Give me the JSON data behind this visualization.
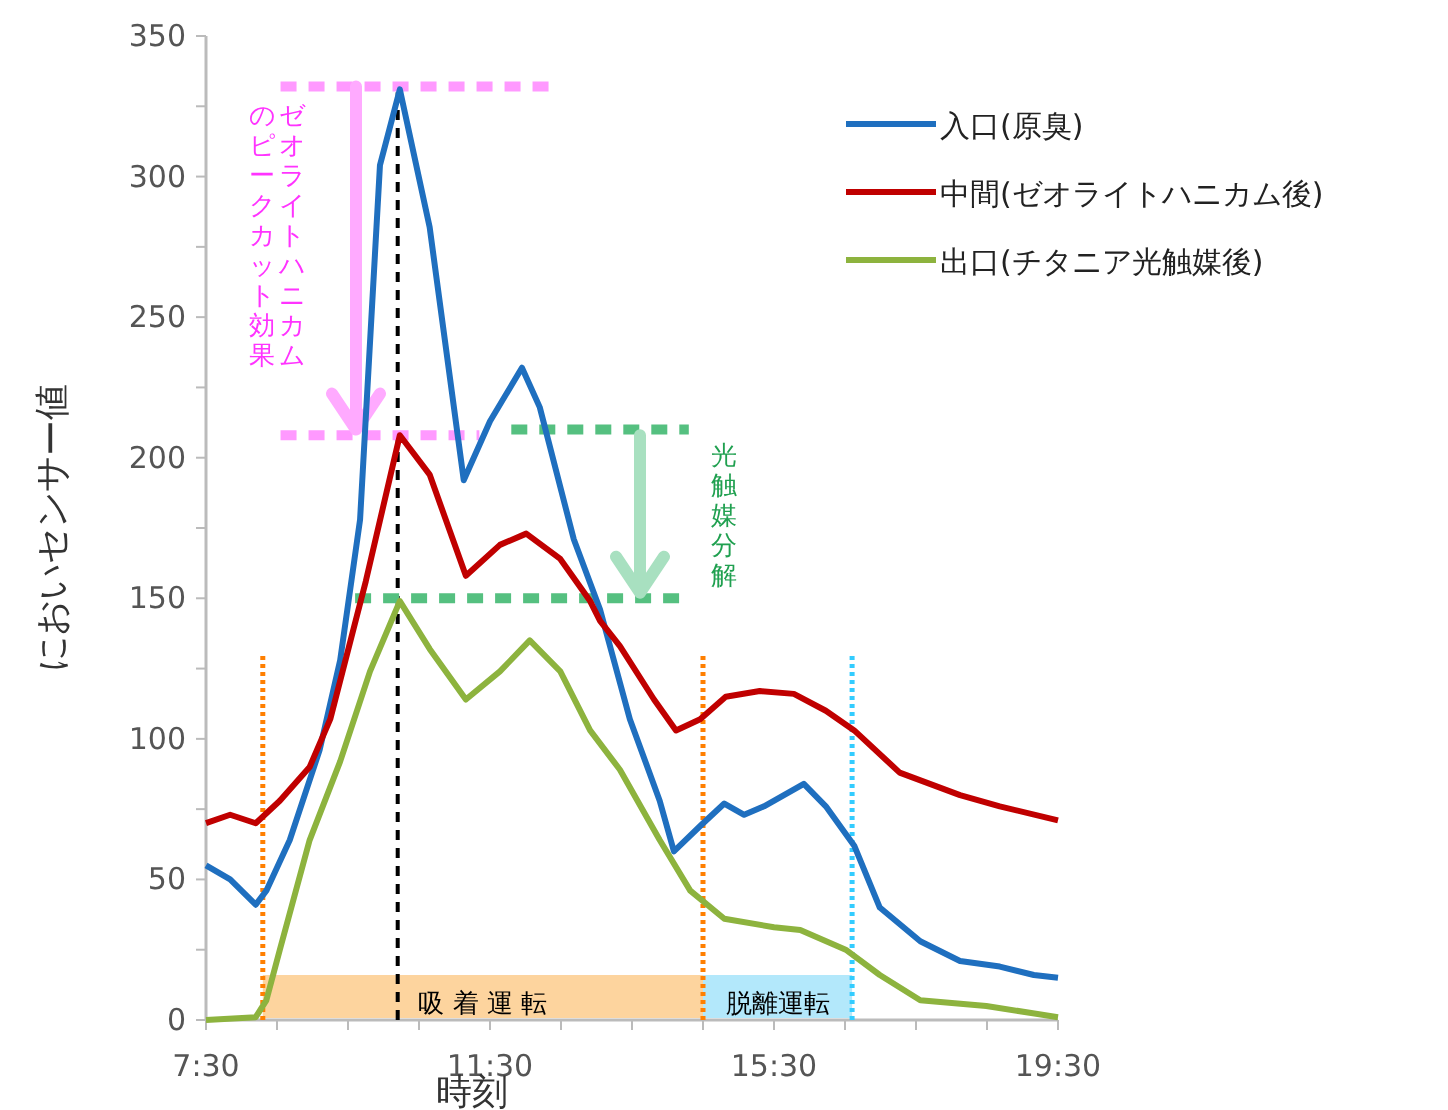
{
  "chart_data": {
    "type": "line",
    "xlabel": "時刻",
    "ylabel": "においセンサー値",
    "xlim": [
      7.5,
      19.5
    ],
    "xticks": [
      {
        "value": 7.5,
        "label": "7:30"
      },
      {
        "value": 8.5,
        "label": null
      },
      {
        "value": 9.5,
        "label": null
      },
      {
        "value": 10.5,
        "label": null
      },
      {
        "value": 11.5,
        "label": "11:30"
      },
      {
        "value": 12.5,
        "label": null
      },
      {
        "value": 13.5,
        "label": null
      },
      {
        "value": 14.5,
        "label": null
      },
      {
        "value": 15.5,
        "label": "15:30"
      },
      {
        "value": 16.5,
        "label": null
      },
      {
        "value": 17.5,
        "label": null
      },
      {
        "value": 18.5,
        "label": null
      },
      {
        "value": 19.5,
        "label": "19:30"
      }
    ],
    "ylim": [
      0,
      350
    ],
    "yticks": [
      0,
      {
        "value": 25,
        "label": null
      },
      50,
      {
        "value": 75,
        "label": null
      },
      100,
      {
        "value": 125,
        "label": null
      },
      150,
      {
        "value": 175,
        "label": null
      },
      200,
      {
        "value": 225,
        "label": null
      },
      250,
      {
        "value": 275,
        "label": null
      },
      300,
      {
        "value": 325,
        "label": null
      },
      350
    ],
    "legend": "top right",
    "marker": "none",
    "line_style": "solid",
    "grid": false,
    "series": [
      {
        "name": "入口(原臭)",
        "color": "#1f6fbf",
        "x": [
          7.5,
          7.84,
          8.2,
          8.35,
          8.68,
          9.1,
          9.39,
          9.67,
          9.95,
          10.23,
          10.65,
          11.13,
          11.5,
          11.95,
          12.2,
          12.68,
          13.05,
          13.47,
          13.89,
          14.09,
          14.46,
          14.8,
          15.08,
          15.36,
          15.92,
          16.23,
          16.63,
          16.99,
          17.56,
          18.12,
          18.68,
          19.16,
          19.5
        ],
        "values": [
          55,
          50,
          41,
          46,
          64,
          96,
          128,
          178,
          304,
          331,
          282,
          192,
          213,
          232,
          218,
          171,
          146,
          107,
          78,
          60,
          69,
          77,
          73,
          76,
          84,
          76,
          62,
          40,
          28,
          21,
          19,
          16,
          15
        ]
      },
      {
        "name": "中間(ゼオライトハニカム後)",
        "color": "#c00000",
        "x": [
          7.5,
          7.84,
          8.2,
          8.54,
          8.96,
          9.25,
          9.75,
          10.23,
          10.65,
          11.16,
          11.64,
          12.01,
          12.49,
          12.91,
          13.05,
          13.33,
          13.81,
          14.12,
          14.46,
          14.82,
          15.3,
          15.78,
          16.23,
          16.63,
          17.27,
          18.12,
          18.68,
          19.5
        ],
        "values": [
          70,
          73,
          70,
          78,
          90,
          107,
          156,
          208,
          194,
          158,
          169,
          173,
          164,
          149,
          142,
          133,
          114,
          103,
          107,
          115,
          117,
          116,
          110,
          103,
          88,
          80,
          76,
          71
        ]
      },
      {
        "name": "出口(チタニア光触媒後)",
        "color": "#8db33e",
        "x": [
          7.5,
          8.2,
          8.35,
          8.54,
          8.96,
          9.39,
          9.81,
          10.23,
          10.65,
          11.16,
          11.64,
          12.06,
          12.49,
          12.91,
          13.33,
          13.89,
          14.32,
          14.8,
          15.5,
          15.87,
          16.51,
          16.99,
          17.56,
          18.49,
          19.5
        ],
        "values": [
          0,
          1,
          7,
          25,
          64,
          92,
          124,
          149,
          132,
          114,
          124,
          135,
          124,
          103,
          89,
          64,
          46,
          36,
          33,
          32,
          25,
          16,
          7,
          5,
          1
        ]
      }
    ],
    "ref_lines": [
      {
        "axis": "x",
        "value": 8.3,
        "color": "#ff7f00",
        "line_style": "dotted"
      },
      {
        "axis": "x",
        "value": 10.2,
        "color": "#000000",
        "line_style": "dashed"
      },
      {
        "axis": "x",
        "value": 14.5,
        "color": "#ff7f00",
        "line_style": "dotted"
      },
      {
        "axis": "x",
        "value": 16.6,
        "color": "#33ccff",
        "line_style": "dotted"
      },
      {
        "axis": "y",
        "value": 332,
        "color": "#ff99ff",
        "line_style": "dotted"
      },
      {
        "axis": "y",
        "value": 208,
        "color": "#ff99ff",
        "line_style": "dotted"
      },
      {
        "axis": "y",
        "value": 210,
        "color": "#55c080",
        "line_style": "dotted"
      },
      {
        "axis": "y",
        "value": 150,
        "color": "#55c080",
        "line_style": "dotted"
      }
    ],
    "bands": [
      {
        "axis": "x",
        "from": 8.3,
        "to": 14.5,
        "label": "吸 着 運 転",
        "color": "#fdd49e"
      },
      {
        "axis": "x",
        "from": 14.5,
        "to": 16.6,
        "label": "脱離運転",
        "color": "#b3e8fb"
      }
    ],
    "annotations": [
      "ゼオライトハニカム",
      "のピークカット効果",
      "光触媒分解"
    ]
  }
}
